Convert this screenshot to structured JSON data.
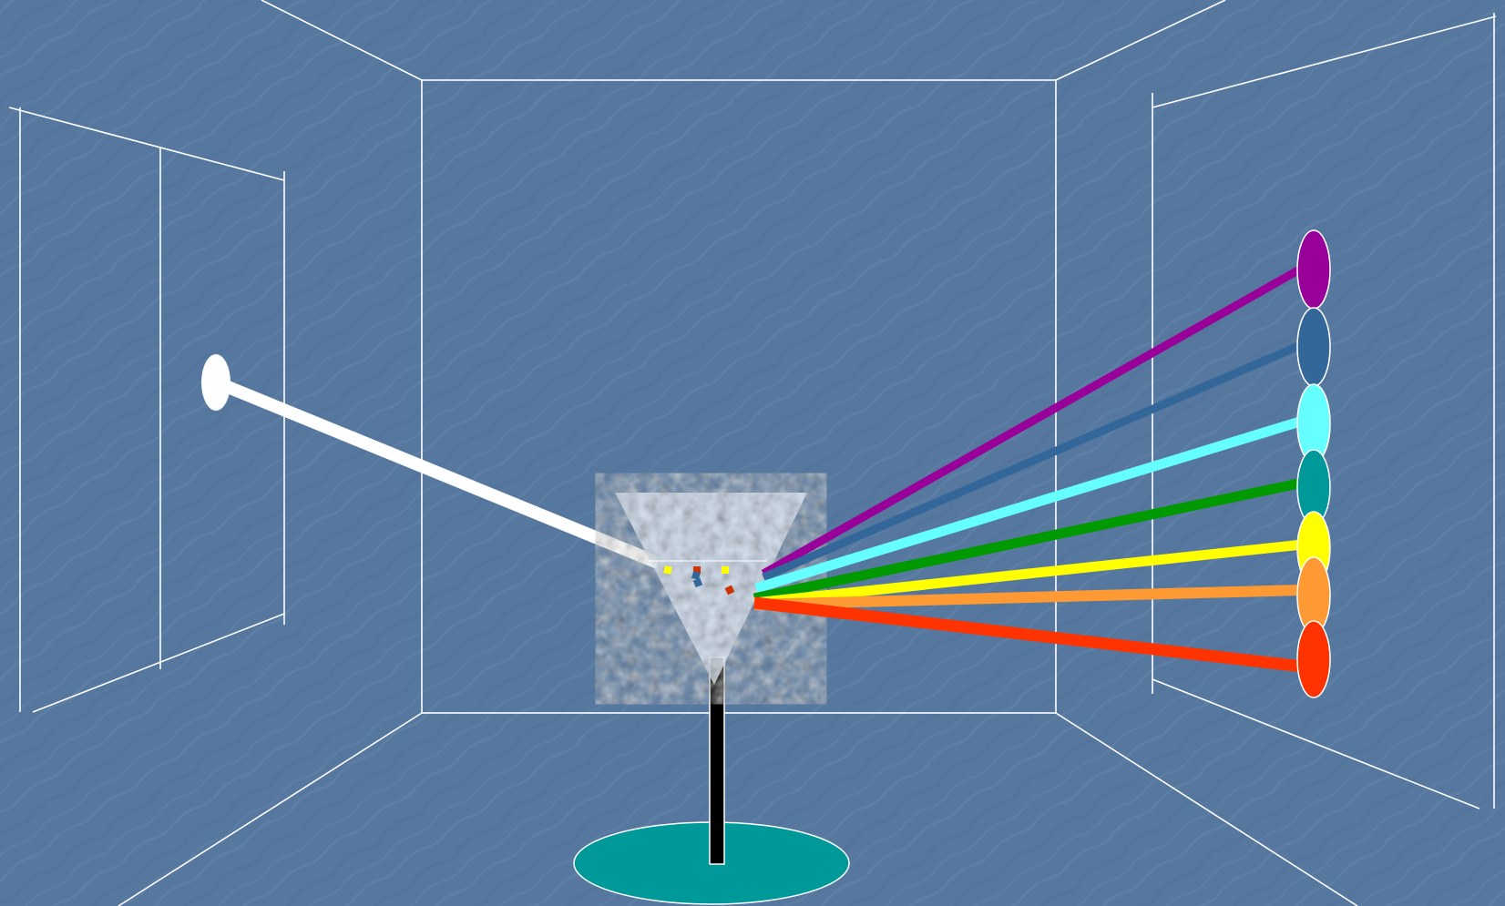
{
  "scene": {
    "description_visible_text": "",
    "colors": {
      "background": "#56789f",
      "background_dark": "#4d6d94",
      "background_light": "#6a8bb2",
      "room_lines": "#ffffff",
      "incoming_beam": "#ffffff",
      "prism": "#e6eef8",
      "stand": "#000000",
      "base": "#009999"
    },
    "spectrum_rays": [
      {
        "name": "violet",
        "color": "#990099"
      },
      {
        "name": "indigo",
        "color": "#336699"
      },
      {
        "name": "cyan",
        "color": "#66ffff"
      },
      {
        "name": "green",
        "color": "#009900"
      },
      {
        "name": "yellow",
        "color": "#ffff00"
      },
      {
        "name": "orange",
        "color": "#ff9933"
      },
      {
        "name": "red",
        "color": "#ff3300"
      }
    ],
    "screen_spots": [
      {
        "name": "violet",
        "color": "#990099"
      },
      {
        "name": "indigo",
        "color": "#336699"
      },
      {
        "name": "cyan",
        "color": "#66ffff"
      },
      {
        "name": "teal",
        "color": "#009999"
      },
      {
        "name": "yellow",
        "color": "#ffff00"
      },
      {
        "name": "orange",
        "color": "#ff9933"
      },
      {
        "name": "red",
        "color": "#ff3300"
      }
    ],
    "prism_particles": [
      "#ffff00",
      "#cc3300",
      "#ffff00",
      "#336699",
      "#cc3300",
      "#336699"
    ]
  }
}
